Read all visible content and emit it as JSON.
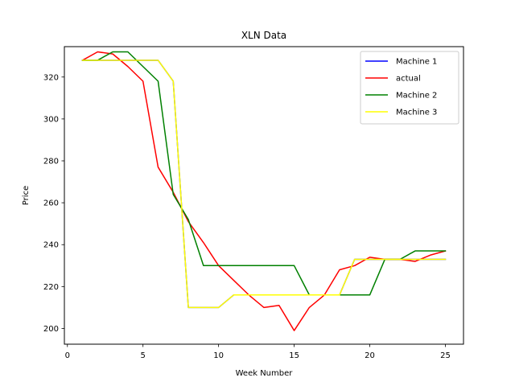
{
  "chart_data": {
    "type": "line",
    "title": "XLN Data",
    "xlabel": "Week Number",
    "ylabel": "Price",
    "xlim": [
      -0.2,
      26.2
    ],
    "ylim": [
      192.5,
      334.5
    ],
    "xticks": [
      0,
      5,
      10,
      15,
      20,
      25
    ],
    "yticks": [
      200,
      220,
      240,
      260,
      280,
      300,
      320
    ],
    "grid": false,
    "legend_position": "top-right",
    "x": [
      1,
      2,
      3,
      4,
      5,
      6,
      7,
      8,
      9,
      10,
      11,
      12,
      13,
      14,
      15,
      16,
      17,
      18,
      19,
      20,
      21,
      22,
      23,
      24,
      25
    ],
    "series": [
      {
        "name": "Machine 1",
        "color": "#0000ff",
        "values": [
          328,
          328,
          328,
          328,
          328,
          328,
          318,
          210,
          210,
          210,
          216,
          216,
          216,
          216,
          216,
          216,
          216,
          216,
          233,
          233,
          233,
          233,
          233,
          233,
          233
        ]
      },
      {
        "name": "actual",
        "color": "#ff0000",
        "values": [
          328,
          332,
          331,
          325,
          318,
          277,
          265,
          251,
          241,
          230,
          223,
          216,
          210,
          211,
          199,
          210,
          216,
          228,
          230,
          234,
          233,
          233,
          232,
          235,
          237
        ]
      },
      {
        "name": "Machine 2",
        "color": "#008000",
        "values": [
          328,
          328,
          332,
          332,
          325,
          318,
          264,
          252,
          230,
          230,
          230,
          230,
          230,
          230,
          230,
          216,
          216,
          216,
          216,
          216,
          233,
          233,
          237,
          237,
          237
        ]
      },
      {
        "name": "Machine 3",
        "color": "#ffff00",
        "values": [
          328,
          328,
          328,
          328,
          328,
          328,
          318,
          210,
          210,
          210,
          216,
          216,
          216,
          216,
          216,
          216,
          216,
          216,
          233,
          233,
          233,
          233,
          233,
          233,
          233
        ]
      }
    ]
  }
}
